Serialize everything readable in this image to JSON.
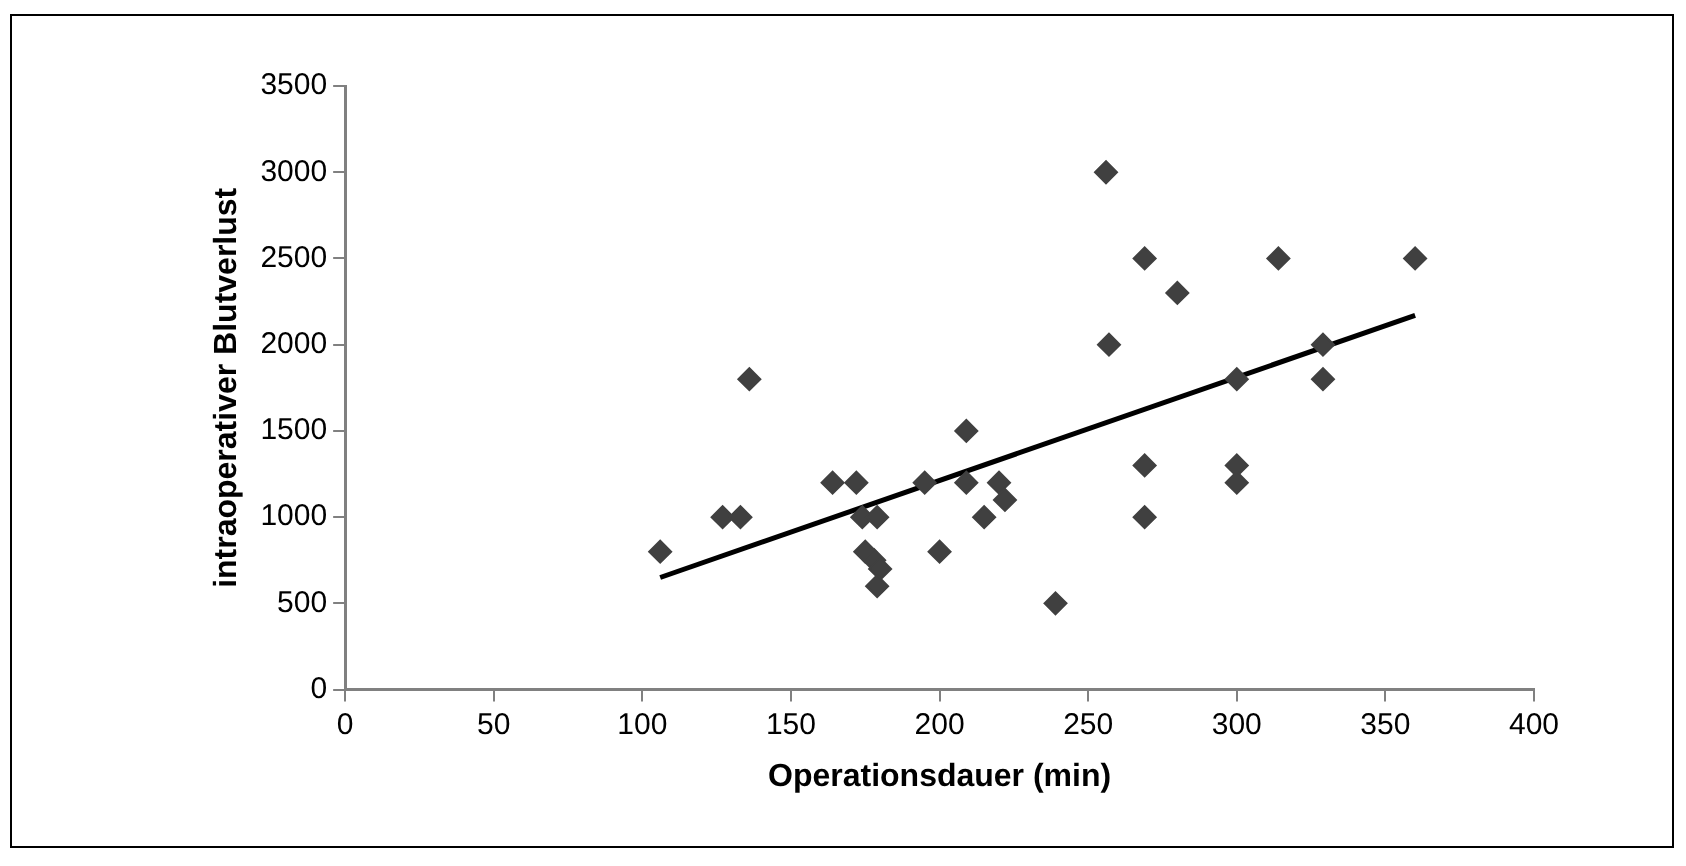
{
  "chart_data": {
    "type": "scatter",
    "xlabel": "Operationsdauer (min)",
    "ylabel": "intraoperativer Blutverlust",
    "xlim": [
      0,
      400
    ],
    "xticks": [
      0,
      50,
      100,
      150,
      200,
      250,
      300,
      350,
      400
    ],
    "ylim": [
      0,
      3500
    ],
    "yticks": [
      0,
      500,
      1000,
      1500,
      2000,
      2500,
      3000,
      3500
    ],
    "grid": false,
    "legend": false,
    "marker": "diamond",
    "series": [
      {
        "color": "#404040",
        "x": [
          106,
          127,
          133,
          136,
          164,
          172,
          174,
          175,
          179,
          178,
          180,
          179,
          195,
          200,
          209,
          209,
          215,
          220,
          222,
          239,
          256,
          257,
          269,
          269,
          269,
          280,
          300,
          300,
          300,
          314,
          329,
          329,
          360
        ],
        "values": [
          800,
          1000,
          1000,
          1800,
          1200,
          1200,
          1000,
          800,
          1000,
          750,
          700,
          600,
          1200,
          800,
          1500,
          1200,
          1000,
          1200,
          1100,
          500,
          3000,
          2000,
          2500,
          1300,
          1000,
          2300,
          1800,
          1300,
          1200,
          2500,
          2000,
          1800,
          2500
        ]
      },
      {
        "type": "line",
        "color": "#000000",
        "marker": "none",
        "line_style": "solid",
        "x": [
          106,
          360
        ],
        "values": [
          650,
          2170
        ]
      }
    ]
  }
}
